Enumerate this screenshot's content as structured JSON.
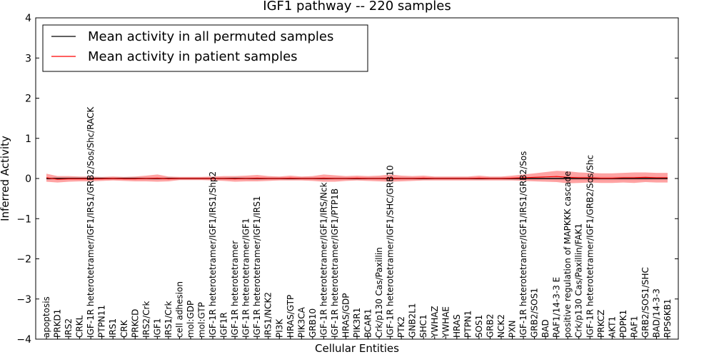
{
  "chart_data": {
    "type": "line",
    "title": "IGF1 pathway -- 220 samples",
    "xlabel": "Cellular Entities",
    "ylabel": "Inferred Activity",
    "ylim": [
      -4,
      4
    ],
    "yticks": [
      4,
      3,
      2,
      1,
      0,
      -1,
      -2,
      -3,
      -4
    ],
    "legend_position": "top-left",
    "categories": [
      "apoptosis",
      "PRKD1",
      "IRS2",
      "CRKL",
      "IGF-1R heterotetramer/IGF1/IRS1/GRB2/Sos/Shc/RACK",
      "PTPN11",
      "IRS1",
      "CRK",
      "PRKCD",
      "IRS2/Crk",
      "IGF1",
      "IRS1/Crk",
      "cell adhesion",
      "mol:GDP",
      "mol:GTP",
      "IGF-1R heterotetramer/IGF1/IRS1/Shp2",
      "IGF1R",
      "IGF-1R heterotetramer",
      "IGF-1R heterotetramer/IGF1",
      "IGF-1R heterotetramer/IGF1/IRS1",
      "IRS1/NCK2",
      "PI3K",
      "HRAS/GTP",
      "PIK3CA",
      "GRB10",
      "IGF-1R heterotetramer/IGF1/IRS/Nck",
      "IGF-1R heterotetramer/IGF1/PTP1B",
      "HRAS/GDP",
      "PIK3R1",
      "BCAR1",
      "Crk/p130 Cas/Paxillin",
      "IGF-1R heterotetramer/IGF1/SHC/GRB10",
      "PTK2",
      "GNB2L1",
      "SHC1",
      "YWHAZ",
      "YWHAE",
      "HRAS",
      "PTPN1",
      "SOS1",
      "GRB2",
      "NCK2",
      "PXN",
      "IGF-1R heterotetramer/IGF1/IRS1/GRB2/Sos",
      "GRB2/SOS1",
      "BAD",
      "RAF1/14-3-3 E",
      "positive regulation of MAPKKK cascade",
      "Crk/p130 Cas/Paxillin/FAK1",
      "IGF-1R heterotetramer/IGF1/GRB2/Sos/Shc",
      "PRKCZ",
      "AKT1",
      "PDPK1",
      "RAF1",
      "GRB2/SOS1/SHC",
      "BAD/14-3-3",
      "RPS6KB1"
    ],
    "series": [
      {
        "name": "Mean activity in all permuted samples",
        "color": "#000000",
        "band_color": "#c8c8c8",
        "values": [
          0,
          0,
          0,
          0,
          0,
          0,
          0,
          0,
          0,
          0,
          0,
          0,
          0,
          0,
          0,
          0,
          0,
          0,
          0,
          0,
          0,
          0,
          0,
          0,
          0,
          0,
          0,
          0,
          0,
          0,
          0,
          0,
          0,
          0,
          0,
          0,
          0,
          0,
          0,
          0,
          0,
          0,
          0,
          0,
          0,
          0,
          0,
          0,
          0,
          0,
          0,
          0,
          0,
          0,
          0,
          0,
          0
        ],
        "band_halfwidth": [
          0.03,
          0.03,
          0.03,
          0.03,
          0.03,
          0.03,
          0.03,
          0.03,
          0.03,
          0.03,
          0.03,
          0.03,
          0.03,
          0.03,
          0.03,
          0.03,
          0.03,
          0.03,
          0.03,
          0.03,
          0.03,
          0.03,
          0.03,
          0.03,
          0.03,
          0.03,
          0.03,
          0.03,
          0.03,
          0.03,
          0.03,
          0.03,
          0.03,
          0.03,
          0.03,
          0.03,
          0.03,
          0.03,
          0.03,
          0.03,
          0.03,
          0.03,
          0.03,
          0.03,
          0.03,
          0.03,
          0.05,
          0.05,
          0.05,
          0.05,
          0.05,
          0.05,
          0.05,
          0.05,
          0.05,
          0.04,
          0.04
        ]
      },
      {
        "name": "Mean activity in patient samples",
        "color": "#ff0000",
        "band_color": "#ff6666",
        "values": [
          0.02,
          -0.02,
          -0.01,
          -0.01,
          -0.01,
          -0.01,
          0,
          -0.01,
          -0.01,
          0,
          0.01,
          -0.01,
          0,
          0,
          0,
          0,
          0,
          -0.01,
          0,
          0.01,
          0,
          0,
          0.01,
          0,
          0,
          0.01,
          0,
          0,
          0.01,
          0,
          0,
          0.01,
          0,
          0,
          0.01,
          0,
          0,
          0,
          0,
          0.01,
          0,
          0,
          0.01,
          0.02,
          0.03,
          0.04,
          0.05,
          0.03,
          0.02,
          0.02,
          0.01,
          0.01,
          0.02,
          0.02,
          0.03,
          0.02,
          0.02
        ],
        "band_halfwidth": [
          0.1,
          0.08,
          0.07,
          0.06,
          0.06,
          0.05,
          0.05,
          0.05,
          0.06,
          0.07,
          0.09,
          0.06,
          0.04,
          0.04,
          0.04,
          0.05,
          0.06,
          0.07,
          0.07,
          0.08,
          0.06,
          0.05,
          0.06,
          0.05,
          0.06,
          0.09,
          0.08,
          0.06,
          0.06,
          0.06,
          0.07,
          0.09,
          0.07,
          0.06,
          0.06,
          0.05,
          0.05,
          0.05,
          0.05,
          0.06,
          0.05,
          0.05,
          0.06,
          0.08,
          0.1,
          0.12,
          0.14,
          0.15,
          0.13,
          0.12,
          0.12,
          0.12,
          0.12,
          0.13,
          0.12,
          0.12,
          0.12
        ]
      }
    ]
  }
}
